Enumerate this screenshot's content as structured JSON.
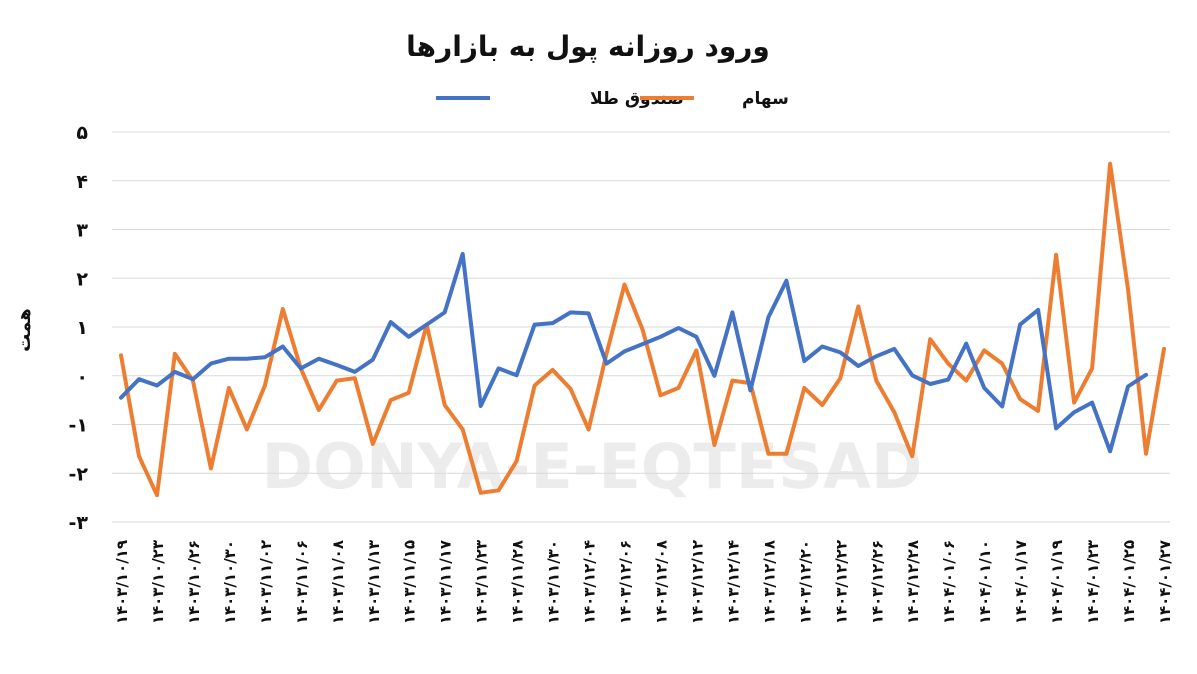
{
  "chart_data": {
    "type": "line",
    "title": "ورود روزانه پول به بازارها",
    "ylabel": "همت",
    "ylim": [
      -3,
      5
    ],
    "yticks": [
      -3,
      -2,
      -1,
      0,
      1,
      2,
      3,
      4,
      5
    ],
    "ytick_labels": [
      "-۳",
      "-۲",
      "-۱",
      "۰",
      "۱",
      "۲",
      "۳",
      "۴",
      "۵"
    ],
    "grid": true,
    "legend_position": "top",
    "watermark": "DONYA-E-EQTESAD",
    "x_labels": [
      "۱۴۰۳/۱۰/۱۹",
      "۱۴۰۳/۱۰/۲۳",
      "۱۴۰۳/۱۰/۲۶",
      "۱۴۰۳/۱۰/۳۰",
      "۱۴۰۳/۱۱/۰۲",
      "۱۴۰۳/۱۱/۰۶",
      "۱۴۰۳/۱۱/۰۸",
      "۱۴۰۳/۱۱/۱۳",
      "۱۴۰۳/۱۱/۱۵",
      "۱۴۰۳/۱۱/۱۷",
      "۱۴۰۳/۱۱/۲۳",
      "۱۴۰۳/۱۱/۲۸",
      "۱۴۰۳/۱۱/۳۰",
      "۱۴۰۳/۱۲/۰۴",
      "۱۴۰۳/۱۲/۰۶",
      "۱۴۰۳/۱۲/۰۸",
      "۱۴۰۳/۱۲/۱۲",
      "۱۴۰۳/۱۲/۱۴",
      "۱۴۰۳/۱۲/۱۸",
      "۱۴۰۳/۱۲/۲۰",
      "۱۴۰۳/۱۲/۲۲",
      "۱۴۰۳/۱۲/۲۶",
      "۱۴۰۳/۱۲/۲۸",
      "۱۴۰۴/۰۱/۰۶",
      "۱۴۰۴/۰۱/۱۰",
      "۱۴۰۴/۰۱/۱۷",
      "۱۴۰۴/۰۱/۱۹",
      "۱۴۰۴/۰۱/۲۳",
      "۱۴۰۴/۰۱/۲۵",
      "۱۴۰۴/۰۱/۲۷"
    ],
    "point_count": 59,
    "series": [
      {
        "name": "صندوق طلا",
        "color": "#4472c4",
        "values": [
          -0.45,
          -0.07,
          -0.2,
          0.08,
          -0.07,
          0.25,
          0.35,
          0.35,
          0.38,
          0.6,
          0.15,
          0.35,
          0.22,
          0.08,
          0.33,
          1.1,
          0.8,
          1.05,
          1.3,
          2.5,
          -0.62,
          0.15,
          0.01,
          1.05,
          1.08,
          1.3,
          1.28,
          0.25,
          0.5,
          0.65,
          0.8,
          0.98,
          0.8,
          0.0,
          1.3,
          -0.3,
          1.2,
          1.95,
          0.3,
          0.6,
          0.48,
          0.2,
          0.4,
          0.55,
          0.01,
          -0.17,
          -0.08,
          0.66,
          -0.25,
          -0.63,
          1.05,
          1.35,
          -1.08,
          -0.75,
          -0.55,
          -1.55,
          -0.22,
          0.02,
          null
        ]
      },
      {
        "name": "سهام",
        "color": "#ed7d31",
        "values": [
          0.42,
          -1.65,
          -2.45,
          0.45,
          -0.1,
          -1.9,
          -0.25,
          -1.1,
          -0.2,
          1.37,
          0.15,
          -0.7,
          -0.1,
          -0.05,
          -1.4,
          -0.5,
          -0.35,
          1.05,
          -0.6,
          -1.1,
          -2.4,
          -2.35,
          -1.75,
          -0.2,
          0.12,
          -0.27,
          -1.1,
          0.45,
          1.87,
          0.95,
          -0.4,
          -0.25,
          0.52,
          -1.42,
          -0.1,
          -0.15,
          -1.6,
          -1.6,
          -0.25,
          -0.6,
          -0.05,
          1.42,
          -0.1,
          -0.75,
          -1.65,
          0.75,
          0.25,
          -0.1,
          0.52,
          0.25,
          -0.48,
          -0.72,
          2.48,
          -0.55,
          0.15,
          4.35,
          1.78,
          -1.6,
          0.55
        ]
      }
    ]
  }
}
